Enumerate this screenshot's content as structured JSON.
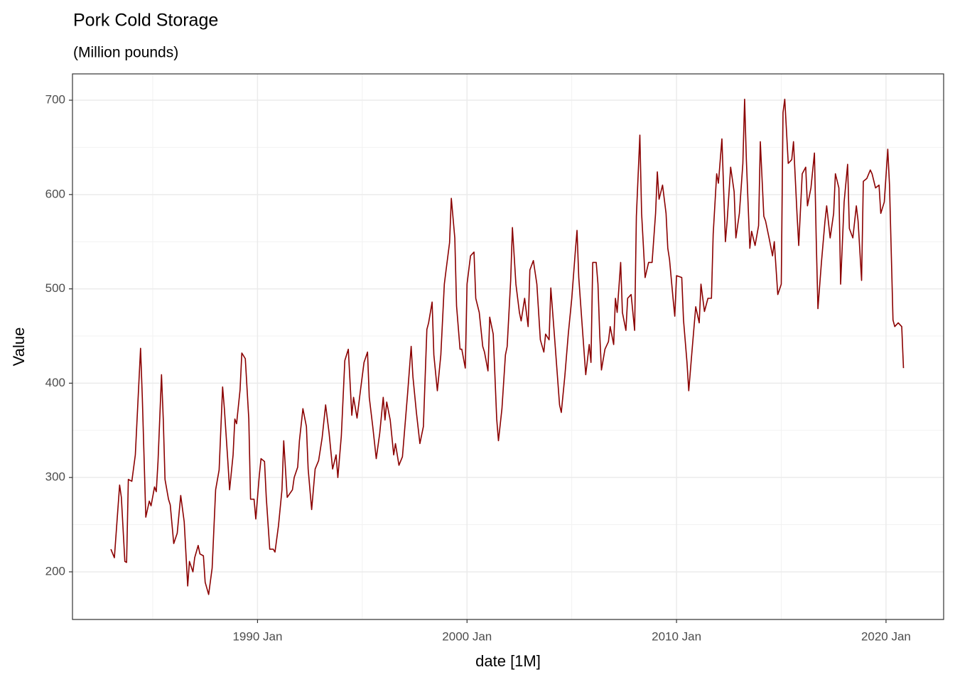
{
  "chart_data": {
    "type": "line",
    "title": "Pork Cold Storage",
    "subtitle": "(Million pounds)",
    "x_label": "date [1M]",
    "y_label": "Value",
    "grid": true,
    "xlim": [
      "1981 Mar",
      "2022 Oct"
    ],
    "xticks": [
      "1990 Jan",
      "2000 Jan",
      "2010 Jan",
      "2020 Jan"
    ],
    "ylim": [
      149.5,
      727.9
    ],
    "yticks": [
      200,
      300,
      400,
      500,
      600,
      700
    ],
    "x": [
      "1983 Jan",
      "1983 Mar",
      "1983 Jun",
      "1983 Jul",
      "1983 Sep",
      "1983 Oct",
      "1983 Nov",
      "1984 Jan",
      "1984 Mar",
      "1984 Jun",
      "1984 Jul",
      "1984 Sep",
      "1984 Nov",
      "1984 Dec",
      "1985 Feb",
      "1985 Mar",
      "1985 Apr",
      "1985 Jun",
      "1985 Jul",
      "1985 Aug",
      "1985 Oct",
      "1985 Nov",
      "1986 Jan",
      "1986 Mar",
      "1986 May",
      "1986 Jul",
      "1986 Sep",
      "1986 Oct",
      "1986 Dec",
      "1987 Jan",
      "1987 Mar",
      "1987 Apr",
      "1987 Jun",
      "1987 Jul",
      "1987 Sep",
      "1987 Nov",
      "1988 Jan",
      "1988 Mar",
      "1988 May",
      "1988 Jun",
      "1988 Aug",
      "1988 Sep",
      "1988 Nov",
      "1988 Dec",
      "1989 Jan",
      "1989 Mar",
      "1989 Apr",
      "1989 Jun",
      "1989 Aug",
      "1989 Sep",
      "1989 Nov",
      "1989 Dec",
      "1990 Feb",
      "1990 Mar",
      "1990 May",
      "1990 Jun",
      "1990 Aug",
      "1990 Oct",
      "1990 Nov",
      "1991 Jan",
      "1991 Mar",
      "1991 Apr",
      "1991 Jun",
      "1991 Sep",
      "1991 Oct",
      "1991 Dec",
      "1992 Jan",
      "1992 Mar",
      "1992 May",
      "1992 Jun",
      "1992 Aug",
      "1992 Oct",
      "1992 Dec",
      "1993 Feb",
      "1993 Apr",
      "1993 Jun",
      "1993 Aug",
      "1993 Oct",
      "1993 Nov",
      "1994 Jan",
      "1994 Mar",
      "1994 May",
      "1994 Jul",
      "1994 Aug",
      "1994 Oct",
      "1994 Dec",
      "1995 Feb",
      "1995 Apr",
      "1995 May",
      "1995 Jul",
      "1995 Sep",
      "1995 Nov",
      "1996 Jan",
      "1996 Feb",
      "1996 Mar",
      "1996 May",
      "1996 Jul",
      "1996 Aug",
      "1996 Oct",
      "1996 Dec",
      "1997 Mar",
      "1997 May",
      "1997 Jun",
      "1997 Aug",
      "1997 Oct",
      "1997 Dec",
      "1998 Feb",
      "1998 Mar",
      "1998 May",
      "1998 Jun",
      "1998 Aug",
      "1998 Oct",
      "1998 Dec",
      "1999 Jan",
      "1999 Mar",
      "1999 Apr",
      "1999 Jun",
      "1999 Jul",
      "1999 Sep",
      "1999 Oct",
      "1999 Dec",
      "2000 Jan",
      "2000 Mar",
      "2000 May",
      "2000 Jun",
      "2000 Aug",
      "2000 Oct",
      "2000 Nov",
      "2001 Jan",
      "2001 Feb",
      "2001 Apr",
      "2001 Jun",
      "2001 Jul",
      "2001 Sep",
      "2001 Nov",
      "2001 Dec",
      "2002 Feb",
      "2002 Mar",
      "2002 May",
      "2002 Jul",
      "2002 Aug",
      "2002 Oct",
      "2002 Dec",
      "2003 Jan",
      "2003 Mar",
      "2003 May",
      "2003 Jul",
      "2003 Sep",
      "2003 Oct",
      "2003 Dec",
      "2004 Jan",
      "2004 Mar",
      "2004 Jun",
      "2004 Jul",
      "2004 Sep",
      "2004 Nov",
      "2005 Jan",
      "2005 Mar",
      "2005 Apr",
      "2005 May",
      "2005 Jul",
      "2005 Sep",
      "2005 Nov",
      "2005 Dec",
      "2006 Jan",
      "2006 Mar",
      "2006 Apr",
      "2006 May",
      "2006 Jun",
      "2006 Aug",
      "2006 Oct",
      "2006 Nov",
      "2007 Jan",
      "2007 Feb",
      "2007 Mar",
      "2007 May",
      "2007 Jun",
      "2007 Aug",
      "2007 Sep",
      "2007 Nov",
      "2008 Jan",
      "2008 Feb",
      "2008 Apr",
      "2008 May",
      "2008 Jul",
      "2008 Sep",
      "2008 Nov",
      "2009 Jan",
      "2009 Feb",
      "2009 Mar",
      "2009 May",
      "2009 Jul",
      "2009 Aug",
      "2009 Sep",
      "2009 Nov",
      "2009 Dec",
      "2010 Jan",
      "2010 Apr",
      "2010 May",
      "2010 Jul",
      "2010 Aug",
      "2010 Oct",
      "2010 Dec",
      "2011 Feb",
      "2011 Mar",
      "2011 May",
      "2011 Jul",
      "2011 Sep",
      "2011 Oct",
      "2011 Dec",
      "2012 Jan",
      "2012 Mar",
      "2012 May",
      "2012 Jun",
      "2012 Aug",
      "2012 Oct",
      "2012 Nov",
      "2013 Jan",
      "2013 Mar",
      "2013 Apr",
      "2013 May",
      "2013 Jul",
      "2013 Aug",
      "2013 Oct",
      "2013 Dec",
      "2014 Jan",
      "2014 Mar",
      "2014 Apr",
      "2014 Jun",
      "2014 Aug",
      "2014 Sep",
      "2014 Nov",
      "2015 Jan",
      "2015 Feb",
      "2015 Mar",
      "2015 May",
      "2015 Jul",
      "2015 Aug",
      "2015 Oct",
      "2015 Nov",
      "2016 Jan",
      "2016 Mar",
      "2016 Apr",
      "2016 Jun",
      "2016 Aug",
      "2016 Sep",
      "2016 Oct",
      "2016 Dec",
      "2017 Feb",
      "2017 Mar",
      "2017 May",
      "2017 Jul",
      "2017 Aug",
      "2017 Oct",
      "2017 Nov",
      "2018 Jan",
      "2018 Mar",
      "2018 Apr",
      "2018 Jun",
      "2018 Aug",
      "2018 Sep",
      "2018 Nov",
      "2018 Dec",
      "2019 Feb",
      "2019 Apr",
      "2019 May",
      "2019 Jul",
      "2019 Sep",
      "2019 Oct",
      "2019 Dec",
      "2020 Feb",
      "2020 Mar",
      "2020 May",
      "2020 Jun",
      "2020 Aug",
      "2020 Oct",
      "2020 Nov"
    ],
    "series": [
      {
        "name": "Value",
        "color": "#8b0000",
        "values": [
          224,
          215,
          292,
          279,
          211,
          210,
          298,
          296,
          324,
          437,
          385,
          258,
          275,
          270,
          290,
          285,
          317,
          409,
          362,
          298,
          277,
          271,
          230,
          241,
          281,
          253,
          185,
          211,
          200,
          215,
          228,
          219,
          217,
          189,
          176,
          204,
          287,
          308,
          396,
          373,
          317,
          287,
          324,
          362,
          357,
          393,
          432,
          426,
          362,
          277,
          277,
          256,
          302,
          320,
          317,
          279,
          224,
          224,
          221,
          249,
          287,
          339,
          279,
          287,
          300,
          311,
          339,
          373,
          354,
          309,
          266,
          309,
          318,
          342,
          377,
          347,
          309,
          324,
          300,
          344,
          424,
          436,
          366,
          385,
          363,
          393,
          422,
          433,
          385,
          354,
          320,
          347,
          385,
          361,
          380,
          361,
          324,
          336,
          313,
          322,
          390,
          439,
          407,
          369,
          336,
          354,
          457,
          464,
          486,
          430,
          392,
          430,
          505,
          520,
          549,
          596,
          554,
          482,
          436,
          436,
          416,
          505,
          535,
          539,
          490,
          475,
          439,
          433,
          413,
          470,
          452,
          362,
          339,
          373,
          430,
          439,
          509,
          565,
          505,
          475,
          466,
          490,
          460,
          520,
          530,
          505,
          446,
          433,
          452,
          446,
          501,
          452,
          377,
          369,
          407,
          452,
          490,
          539,
          562,
          512,
          460,
          409,
          441,
          422,
          528,
          528,
          505,
          452,
          414,
          436,
          444,
          460,
          441,
          490,
          475,
          528,
          475,
          456,
          490,
          494,
          456,
          577,
          663,
          580,
          512,
          528,
          528,
          580,
          624,
          595,
          610,
          580,
          543,
          531,
          490,
          471,
          514,
          512,
          467,
          422,
          392,
          437,
          481,
          464,
          505,
          476,
          490,
          490,
          558,
          622,
          612,
          659,
          550,
          572,
          629,
          603,
          554,
          580,
          633,
          701,
          637,
          543,
          561,
          546,
          567,
          656,
          577,
          572,
          554,
          535,
          550,
          494,
          505,
          687,
          701,
          633,
          637,
          656,
          580,
          546,
          622,
          629,
          588,
          607,
          644,
          554,
          479,
          528,
          571,
          588,
          554,
          580,
          622,
          607,
          505,
          592,
          632,
          564,
          554,
          588,
          572,
          509,
          614,
          617,
          626,
          622,
          607,
          610,
          580,
          592,
          648,
          610,
          467,
          460,
          464,
          460,
          416
        ]
      }
    ]
  }
}
